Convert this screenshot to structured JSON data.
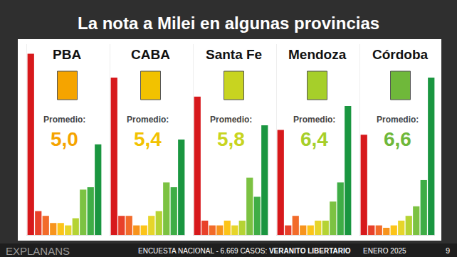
{
  "title": "La nota a Milei en algunas provincias",
  "footer": {
    "brand": "EXPLANANS",
    "survey": "ENCUESTA NACIONAL - 6.669 CASOS:",
    "survey_title": "VERANITO LIBERTARIO",
    "date": "ENERO 2025",
    "page": "9"
  },
  "chart_data": [
    {
      "type": "bar",
      "title": "PBA",
      "annotations": [
        "Promedio:",
        "5,0"
      ],
      "color": "#f5a400",
      "categories": [
        null,
        null,
        null,
        null,
        null,
        null,
        null,
        null,
        null,
        null
      ],
      "values": [
        38,
        5,
        4,
        2.5,
        2.5,
        2,
        3.5,
        9.5,
        10,
        19
      ],
      "colors": [
        "#d7191c",
        "#e8412a",
        "#f26b2a",
        "#f7941d",
        "#fcc419",
        "#e6d52a",
        "#b5d334",
        "#7cc242",
        "#3fad46",
        "#1a9640"
      ],
      "ylim": [
        0,
        40
      ],
      "tick_labels": false
    },
    {
      "type": "bar",
      "title": "CABA",
      "annotations": [
        "Promedio:",
        "5,4"
      ],
      "color": "#f2c200",
      "categories": [
        null,
        null,
        null,
        null,
        null,
        null,
        null,
        null,
        null,
        null
      ],
      "values": [
        33,
        4,
        4,
        2,
        2,
        4,
        5,
        11,
        10,
        20
      ],
      "colors": [
        "#d7191c",
        "#e8412a",
        "#f26b2a",
        "#f7941d",
        "#fcc419",
        "#e6d52a",
        "#b5d334",
        "#7cc242",
        "#3fad46",
        "#1a9640"
      ],
      "ylim": [
        0,
        40
      ],
      "tick_labels": false
    },
    {
      "type": "bar",
      "title": "Santa Fe",
      "annotations": [
        "Promedio:",
        "5,8"
      ],
      "color": "#c8d420",
      "categories": [
        null,
        null,
        null,
        null,
        null,
        null,
        null,
        null,
        null,
        null
      ],
      "values": [
        29,
        3,
        2,
        2,
        3,
        2,
        3,
        12,
        8,
        23
      ],
      "colors": [
        "#d7191c",
        "#e8412a",
        "#f26b2a",
        "#f7941d",
        "#fcc419",
        "#e6d52a",
        "#b5d334",
        "#7cc242",
        "#3fad46",
        "#1a9640"
      ],
      "ylim": [
        0,
        40
      ],
      "tick_labels": false
    },
    {
      "type": "bar",
      "title": "Mendoza",
      "annotations": [
        "Promedio:",
        "6,4"
      ],
      "color": "#a6cf2a",
      "categories": [
        null,
        null,
        null,
        null,
        null,
        null,
        null,
        null,
        null,
        null
      ],
      "values": [
        22,
        2,
        4,
        2,
        2,
        3,
        3,
        7,
        11,
        27
      ],
      "colors": [
        "#d7191c",
        "#e8412a",
        "#f26b2a",
        "#f7941d",
        "#fcc419",
        "#e6d52a",
        "#b5d334",
        "#7cc242",
        "#3fad46",
        "#1a9640"
      ],
      "ylim": [
        0,
        40
      ],
      "tick_labels": false
    },
    {
      "type": "bar",
      "title": "Córdoba",
      "annotations": [
        "Promedio:",
        "6,6"
      ],
      "color": "#6fb83a",
      "categories": [
        null,
        null,
        null,
        null,
        null,
        null,
        null,
        null,
        null,
        null
      ],
      "values": [
        21,
        2,
        2,
        1.5,
        2,
        3,
        4,
        6,
        11.5,
        33
      ],
      "colors": [
        "#d7191c",
        "#e8412a",
        "#f26b2a",
        "#f7941d",
        "#fcc419",
        "#e6d52a",
        "#b5d334",
        "#7cc242",
        "#3fad46",
        "#1a9640"
      ],
      "ylim": [
        0,
        40
      ],
      "tick_labels": false
    }
  ]
}
